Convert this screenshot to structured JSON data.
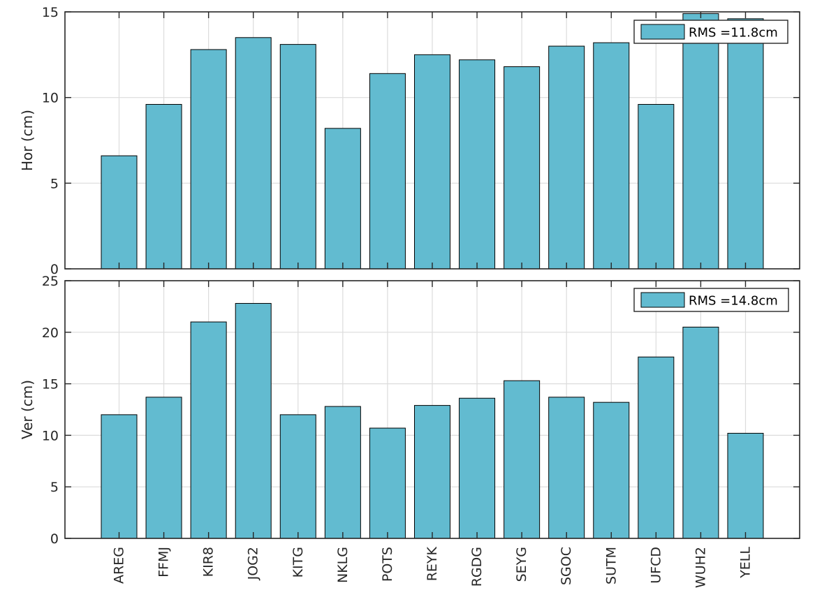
{
  "chart_data": [
    {
      "type": "bar",
      "categories": [
        "AREG",
        "FFMJ",
        "KIR8",
        "JOG2",
        "KITG",
        "NKLG",
        "POTS",
        "REYK",
        "RGDG",
        "SEYG",
        "SGOC",
        "SUTM",
        "UFCD",
        "WUH2",
        "YELL"
      ],
      "values": [
        6.6,
        9.6,
        12.8,
        13.5,
        13.1,
        8.2,
        11.4,
        12.5,
        12.2,
        11.8,
        13.0,
        13.2,
        9.6,
        14.9,
        14.6
      ],
      "ylabel": "Hor (cm)",
      "ylim": [
        0,
        15
      ],
      "yticks": [
        0,
        5,
        10,
        15
      ],
      "legend": "RMS =11.8cm",
      "legend_position": "top-right",
      "grid": true,
      "bar_color": "#62bbd0"
    },
    {
      "type": "bar",
      "categories": [
        "AREG",
        "FFMJ",
        "KIR8",
        "JOG2",
        "KITG",
        "NKLG",
        "POTS",
        "REYK",
        "RGDG",
        "SEYG",
        "SGOC",
        "SUTM",
        "UFCD",
        "WUH2",
        "YELL"
      ],
      "values": [
        12.0,
        13.7,
        21.0,
        22.8,
        12.0,
        12.8,
        10.7,
        12.9,
        13.6,
        15.3,
        13.7,
        13.2,
        17.6,
        20.5,
        10.2
      ],
      "ylabel": "Ver (cm)",
      "ylim": [
        0,
        25
      ],
      "yticks": [
        0,
        5,
        10,
        15,
        20,
        25
      ],
      "legend": "RMS =14.8cm",
      "legend_position": "top-right",
      "grid": true,
      "bar_color": "#62bbd0"
    }
  ]
}
